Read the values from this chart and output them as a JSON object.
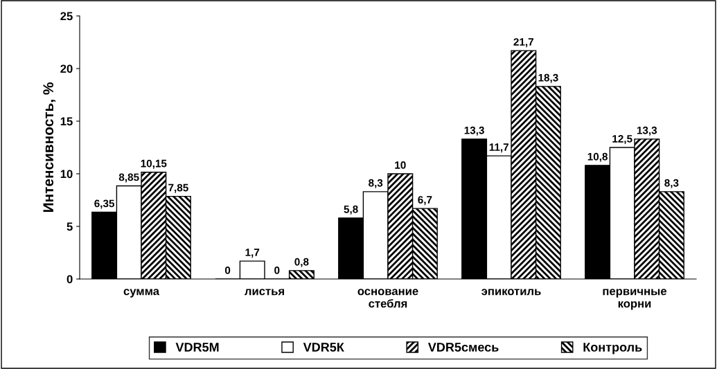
{
  "chart_data": {
    "type": "bar",
    "ylabel": "Интенсивность, %",
    "categories": [
      "сумма",
      "листья",
      "основание\nстебля",
      "эпикотиль",
      "первичные\nкорни"
    ],
    "series": [
      {
        "name": "VDR5M",
        "color": "#000000",
        "values": [
          6.35,
          0,
          5.8,
          13.3,
          10.8
        ],
        "value_labels": [
          "6,35",
          "0",
          "5,8",
          "13,3",
          "10,8"
        ]
      },
      {
        "name": "VDR5К",
        "color": "#ffffff",
        "values": [
          8.85,
          1.7,
          8.3,
          11.7,
          12.5
        ],
        "value_labels": [
          "8,85",
          "1,7",
          "8,3",
          "11,7",
          "12,5"
        ]
      },
      {
        "name": "VDR5смесь",
        "color": "#000000",
        "values": [
          10.15,
          0,
          10,
          21.7,
          13.3
        ],
        "value_labels": [
          "10,15",
          "0",
          "10",
          "21,7",
          "13,3"
        ]
      },
      {
        "name": "Контроль",
        "color": "#000000",
        "values": [
          7.85,
          0.8,
          6.7,
          18.3,
          8.3
        ],
        "value_labels": [
          "7,85",
          "0,8",
          "6,7",
          "18,3",
          "8,3"
        ]
      }
    ],
    "ylim": [
      0,
      25
    ],
    "yticks": [
      0,
      5,
      10,
      15,
      20,
      25
    ],
    "grid": false,
    "legend": "bottom"
  }
}
